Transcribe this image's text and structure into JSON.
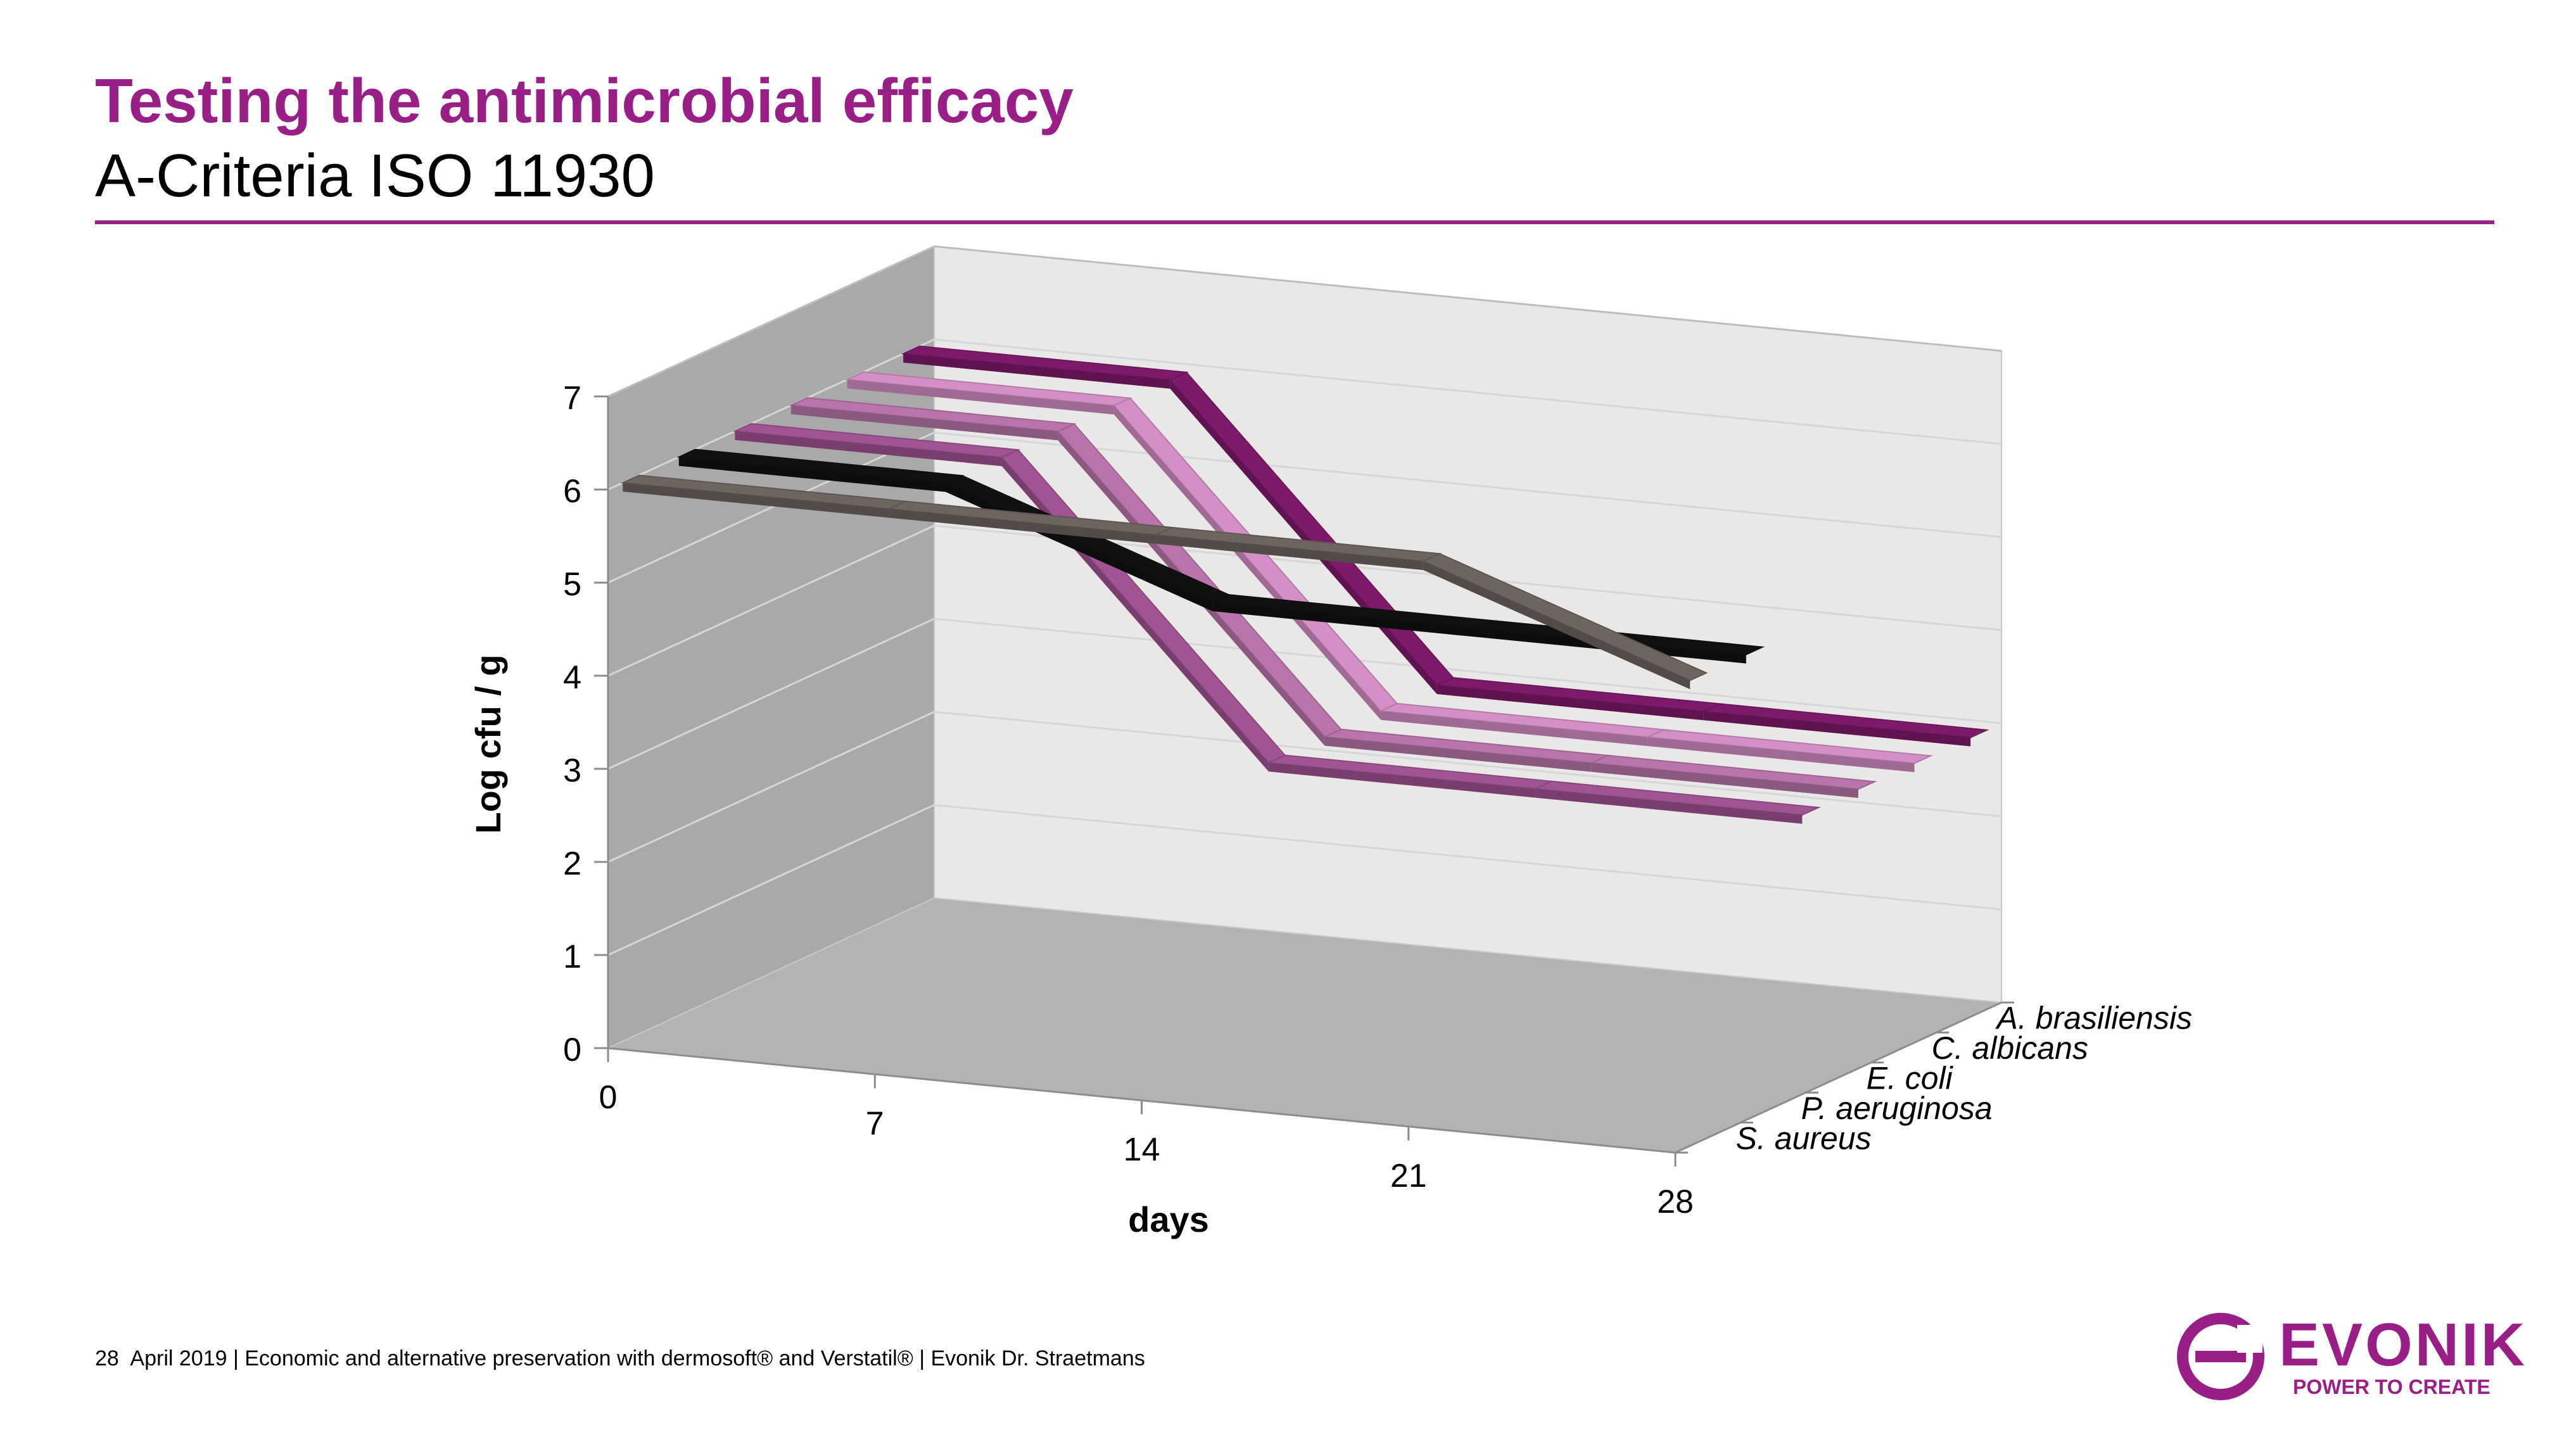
{
  "slide": {
    "title": "Testing the antimicrobial efficacy",
    "subtitle": "A-Criteria ISO 11930"
  },
  "footer": {
    "page_number": "28",
    "text": "April 2019  |  Economic and alternative preservation with dermosoft® and Verstatil®  |  Evonik Dr. Straetmans"
  },
  "logo": {
    "wordmark": "EVONIK",
    "tagline": "POWER TO CREATE"
  },
  "colors": {
    "brand": "#991f87"
  },
  "chart_data": {
    "type": "line",
    "subtype": "3d-line",
    "title": "",
    "xlabel": "days",
    "ylabel": "Log cfu / g",
    "x": [
      0,
      7,
      14,
      21,
      28
    ],
    "x_tick_labels": [
      "0",
      "7",
      "14",
      "21",
      "28"
    ],
    "y_tick_labels": [
      "0",
      "1",
      "2",
      "3",
      "4",
      "5",
      "6",
      "7"
    ],
    "ylim": [
      0,
      7
    ],
    "grid": true,
    "series": [
      {
        "name": "S. aureus",
        "values": [
          6.0,
          6.0,
          3.0,
          3.0,
          3.0
        ],
        "color": "#7e1a6c"
      },
      {
        "name": "P. aeruginosa",
        "values": [
          6.0,
          6.0,
          3.0,
          3.0,
          3.0
        ],
        "color": "#d48fc6"
      },
      {
        "name": "E. coli",
        "values": [
          6.0,
          6.0,
          3.0,
          3.0,
          3.0
        ],
        "color": "#b975ab"
      },
      {
        "name": "C. albicans",
        "values": [
          6.0,
          6.0,
          3.0,
          3.0,
          3.0
        ],
        "color": "#a05493"
      },
      {
        "name": "A. brasiliensis",
        "values": [
          6.0,
          6.0,
          5.0,
          5.0,
          5.0
        ],
        "color": "#111111"
      },
      {
        "name": "",
        "values": [
          6.0,
          6.0,
          6.0,
          6.0,
          5.0
        ],
        "color": "#6e6460"
      }
    ],
    "depth_labels": [
      "A. brasiliensis",
      "C. albicans",
      "E. coli",
      "P. aeruginosa",
      "S. aureus"
    ]
  }
}
